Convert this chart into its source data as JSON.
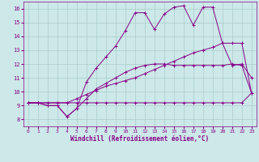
{
  "xlabel": "Windchill (Refroidissement éolien,°C)",
  "ylabel": "",
  "xlim": [
    -0.5,
    23.5
  ],
  "ylim": [
    7.5,
    16.5
  ],
  "yticks": [
    8,
    9,
    10,
    11,
    12,
    13,
    14,
    15,
    16
  ],
  "xticks": [
    0,
    1,
    2,
    3,
    4,
    5,
    6,
    7,
    8,
    9,
    10,
    11,
    12,
    13,
    14,
    15,
    16,
    17,
    18,
    19,
    20,
    21,
    22,
    23
  ],
  "background_color": "#cce8e8",
  "grid_color": "#aacccc",
  "line_color": "#880088",
  "lines": [
    {
      "x": [
        0,
        1,
        2,
        3,
        4,
        5,
        6,
        7,
        8,
        9,
        10,
        11,
        12,
        13,
        14,
        15,
        16,
        17,
        18,
        19,
        20,
        21,
        22,
        23
      ],
      "y": [
        9.2,
        9.2,
        9.2,
        9.2,
        9.2,
        9.2,
        9.2,
        9.2,
        9.2,
        9.2,
        9.2,
        9.2,
        9.2,
        9.2,
        9.2,
        9.2,
        9.2,
        9.2,
        9.2,
        9.2,
        9.2,
        9.2,
        9.2,
        9.9
      ]
    },
    {
      "x": [
        0,
        1,
        2,
        3,
        4,
        5,
        6,
        7,
        8,
        9,
        10,
        11,
        12,
        13,
        14,
        15,
        16,
        17,
        18,
        19,
        20,
        21,
        22,
        23
      ],
      "y": [
        9.2,
        9.2,
        9.2,
        9.2,
        9.2,
        9.5,
        9.8,
        10.1,
        10.4,
        10.6,
        10.8,
        11.0,
        11.3,
        11.6,
        11.9,
        12.2,
        12.5,
        12.8,
        13.0,
        13.2,
        13.5,
        13.5,
        13.5,
        9.9
      ]
    },
    {
      "x": [
        0,
        1,
        2,
        3,
        4,
        5,
        6,
        7,
        8,
        9,
        10,
        11,
        12,
        13,
        14,
        15,
        16,
        17,
        18,
        19,
        20,
        21,
        22,
        23
      ],
      "y": [
        9.2,
        9.2,
        9.0,
        9.0,
        8.2,
        8.8,
        9.5,
        10.2,
        10.6,
        11.0,
        11.4,
        11.7,
        11.9,
        12.0,
        12.0,
        11.9,
        11.9,
        11.9,
        11.9,
        11.9,
        11.9,
        12.0,
        11.9,
        9.9
      ]
    },
    {
      "x": [
        0,
        1,
        2,
        3,
        4,
        5,
        6,
        7,
        8,
        9,
        10,
        11,
        12,
        13,
        14,
        15,
        16,
        17,
        18,
        19,
        20,
        21,
        22,
        23
      ],
      "y": [
        9.2,
        9.2,
        9.0,
        9.0,
        8.2,
        8.8,
        10.7,
        11.7,
        12.5,
        13.3,
        14.4,
        15.7,
        15.7,
        14.5,
        15.6,
        16.1,
        16.2,
        14.8,
        16.1,
        16.1,
        13.5,
        11.9,
        12.0,
        11.0
      ]
    }
  ]
}
